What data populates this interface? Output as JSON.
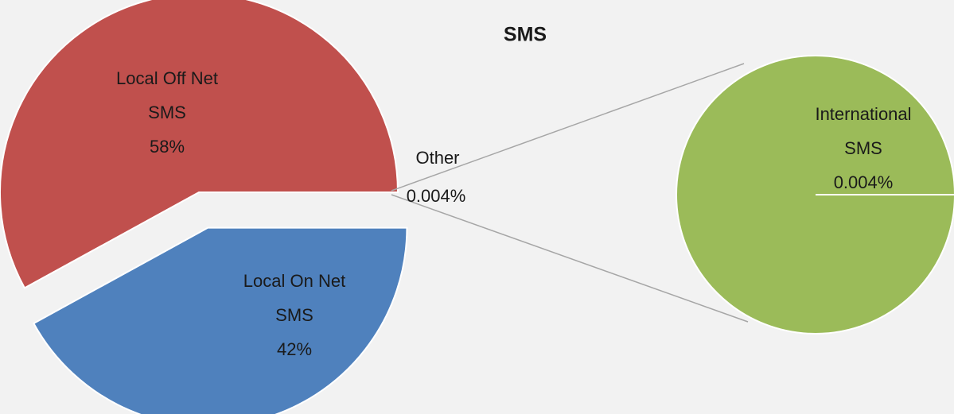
{
  "chart_data": {
    "type": "pie",
    "title": "SMS",
    "categories": [
      "Local Off Net SMS",
      "Local On Net SMS",
      "Other"
    ],
    "values": [
      58,
      42,
      0.004
    ],
    "value_labels": [
      "58%",
      "42%",
      "0.004%"
    ],
    "colors": [
      "#c0504d",
      "#4f81bd",
      null
    ],
    "secondary": {
      "categories": [
        "International SMS"
      ],
      "values": [
        0.004
      ],
      "value_labels": [
        "0.004%"
      ],
      "colors": [
        "#9bbb59"
      ]
    }
  }
}
